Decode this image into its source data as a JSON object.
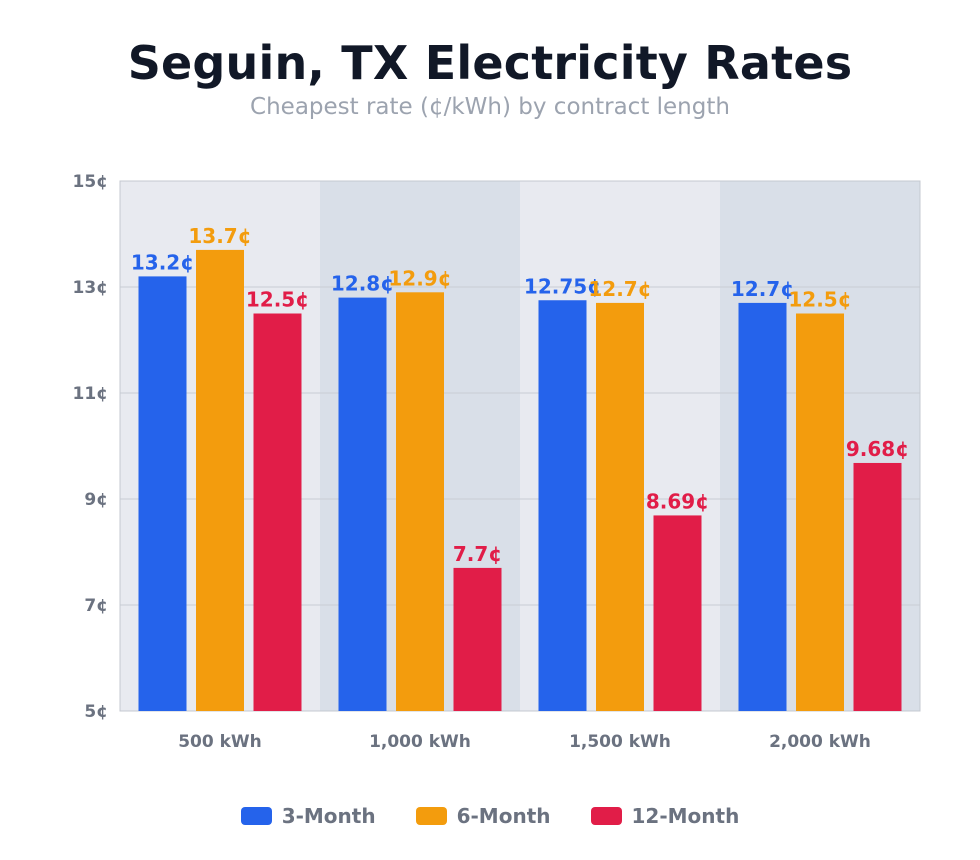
{
  "chart_data": {
    "type": "bar",
    "title": "Seguin, TX Electricity Rates",
    "subtitle": "Cheapest rate (¢/kWh) by contract length",
    "xlabel": "",
    "ylabel": "",
    "ylim": [
      5,
      15
    ],
    "yticks": [
      5,
      7,
      9,
      11,
      13,
      15
    ],
    "ytick_labels": [
      "5¢",
      "7¢",
      "9¢",
      "11¢",
      "13¢",
      "15¢"
    ],
    "categories": [
      "500 kWh",
      "1,000 kWh",
      "1,500 kWh",
      "2,000 kWh"
    ],
    "series": [
      {
        "name": "3-Month",
        "color": "#2563eb",
        "values": [
          13.2,
          12.8,
          12.75,
          12.7
        ],
        "labels": [
          "13.2¢",
          "12.8¢",
          "12.75¢",
          "12.7¢"
        ]
      },
      {
        "name": "6-Month",
        "color": "#f39c0d",
        "values": [
          13.7,
          12.9,
          12.7,
          12.5
        ],
        "labels": [
          "13.7¢",
          "12.9¢",
          "12.7¢",
          "12.5¢"
        ]
      },
      {
        "name": "12-Month",
        "color": "#e11d48",
        "values": [
          12.5,
          7.7,
          8.69,
          9.68
        ],
        "labels": [
          "12.5¢",
          "7.7¢",
          "8.69¢",
          "9.68¢"
        ]
      }
    ],
    "grid": true,
    "legend_position": "bottom",
    "band_colors": [
      "#e8eaf0",
      "#d9dfe8"
    ],
    "grid_color": "#c9ccd4",
    "axis_color": "#c4c8d0"
  }
}
